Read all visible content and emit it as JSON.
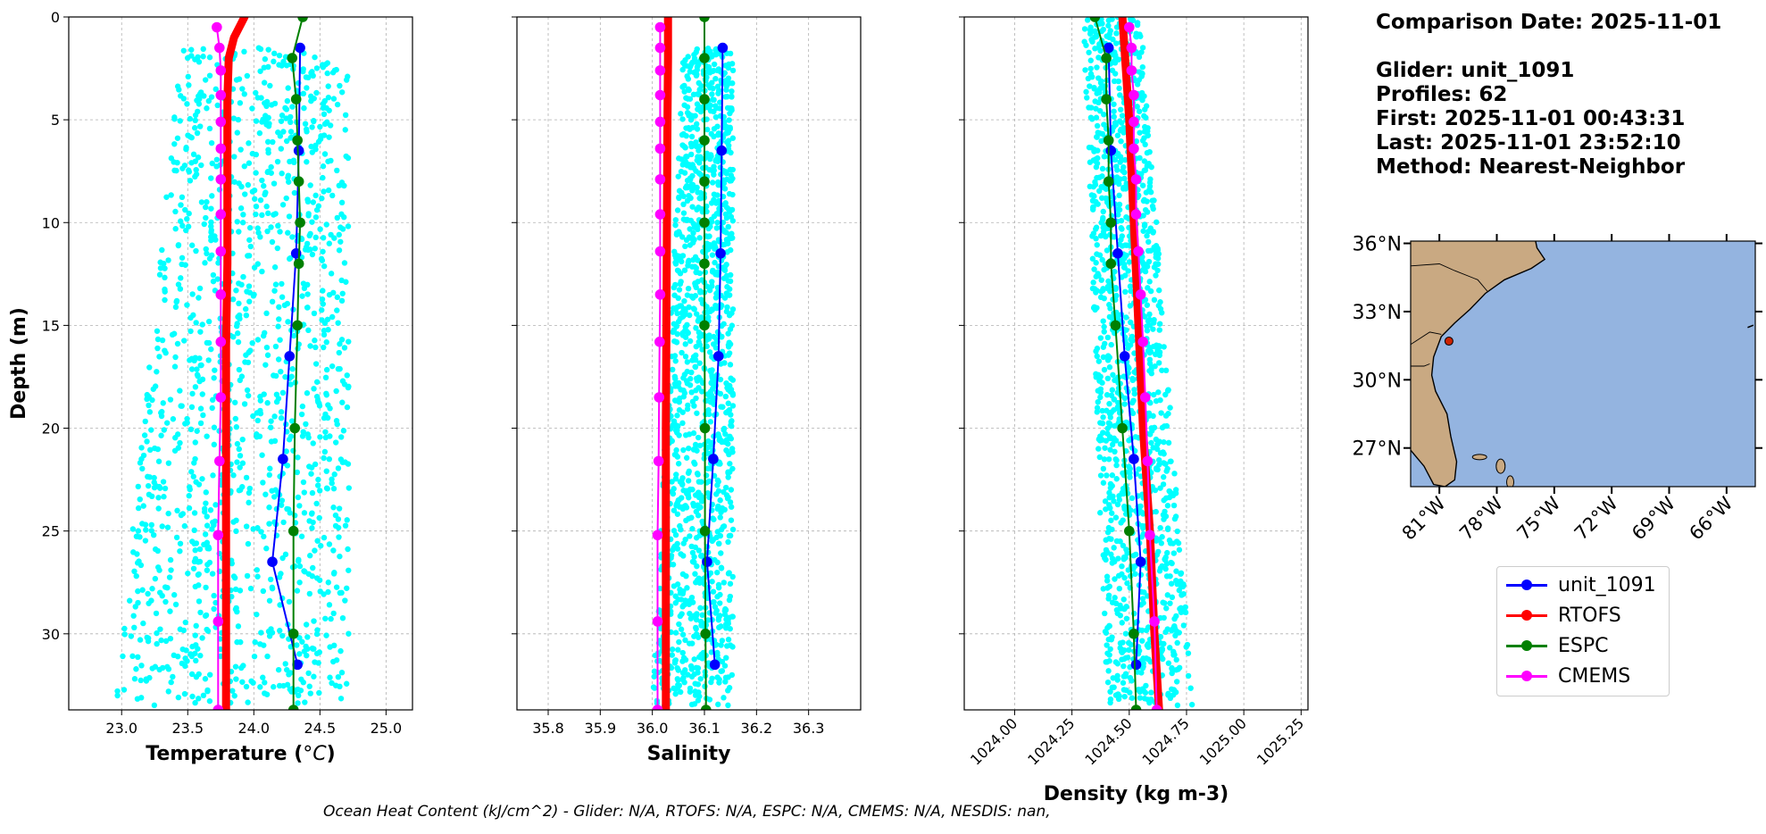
{
  "info": {
    "comparison_date": "Comparison Date: 2025-11-01",
    "glider": "Glider: unit_1091",
    "profiles": "Profiles: 62",
    "first": "First: 2025-11-01 00:43:31",
    "last": "Last: 2025-11-01 23:52:10",
    "method": "Method: Nearest-Neighbor"
  },
  "footer": "Ocean Heat Content (kJ/cm^2) - Glider: N/A,  RTOFS: N/A,  ESPC: N/A,  CMEMS: N/A,  NESDIS: nan,",
  "legend": [
    {
      "label": "unit_1091",
      "color": "#0000ff"
    },
    {
      "label": "RTOFS",
      "color": "#ff0000"
    },
    {
      "label": "ESPC",
      "color": "#008000"
    },
    {
      "label": "CMEMS",
      "color": "#ff00ff"
    }
  ],
  "colors": {
    "scatter": "#00ffff",
    "glider": "#0000ff",
    "rtofs": "#ff0000",
    "espc": "#008000",
    "cmems": "#ff00ff",
    "land": "#c9a982",
    "ocean": "#94b4e0"
  },
  "chart_data": [
    {
      "type": "line",
      "xlabel": "Temperature (°C)",
      "ylabel": "Depth (m)",
      "xlim": [
        22.6,
        25.2
      ],
      "ylim": [
        33.7,
        0
      ],
      "xticks": [
        "23.0",
        "23.5",
        "24.0",
        "24.5",
        "25.0"
      ],
      "yticks": [
        "0",
        "5",
        "10",
        "15",
        "20",
        "25",
        "30"
      ],
      "grid": true,
      "scatter_band": {
        "depth_range": [
          1.5,
          33.5
        ],
        "x_left_at_top": 23.45,
        "x_left_at_bottom": 22.95,
        "x_right": 24.72
      },
      "series": [
        {
          "name": "unit_1091",
          "depth": [
            1.5,
            6.5,
            11.5,
            16.5,
            21.5,
            26.5,
            31.5
          ],
          "values": [
            24.35,
            24.34,
            24.32,
            24.27,
            24.22,
            24.14,
            24.33
          ]
        },
        {
          "name": "RTOFS",
          "depth": [
            0,
            1,
            2,
            4,
            8,
            12,
            16,
            20,
            25,
            30,
            33.7
          ],
          "values": [
            23.93,
            23.85,
            23.81,
            23.8,
            23.8,
            23.8,
            23.79,
            23.79,
            23.79,
            23.79,
            23.79
          ]
        },
        {
          "name": "ESPC",
          "depth": [
            0,
            2,
            4,
            6,
            8,
            10,
            12,
            15,
            20,
            25,
            30,
            33.7
          ],
          "values": [
            24.37,
            24.29,
            24.32,
            24.33,
            24.34,
            24.35,
            24.34,
            24.33,
            24.31,
            24.3,
            24.3,
            24.3
          ]
        },
        {
          "name": "CMEMS",
          "depth": [
            0.5,
            1.5,
            2.6,
            3.8,
            5.1,
            6.4,
            7.9,
            9.6,
            11.4,
            13.5,
            15.8,
            18.5,
            21.6,
            25.2,
            29.4,
            33.7
          ],
          "values": [
            23.72,
            23.74,
            23.75,
            23.75,
            23.75,
            23.75,
            23.75,
            23.75,
            23.75,
            23.75,
            23.75,
            23.75,
            23.74,
            23.73,
            23.73,
            23.73
          ]
        }
      ]
    },
    {
      "type": "line",
      "xlabel": "Salinity",
      "ylabel": "",
      "xlim": [
        35.74,
        36.4
      ],
      "ylim": [
        33.7,
        0
      ],
      "xticks": [
        "35.8",
        "35.9",
        "36.0",
        "36.1",
        "36.2",
        "36.3"
      ],
      "yticks": [
        "0",
        "5",
        "10",
        "15",
        "20",
        "25",
        "30"
      ],
      "grid": true,
      "scatter_band": {
        "depth_range": [
          1.5,
          33.5
        ],
        "x_left_at_top": 36.06,
        "x_left_at_bottom": 36.0,
        "x_right": 36.155
      },
      "series": [
        {
          "name": "unit_1091",
          "depth": [
            1.5,
            6.5,
            11.5,
            16.5,
            21.5,
            26.5,
            31.5
          ],
          "values": [
            36.135,
            36.133,
            36.131,
            36.127,
            36.117,
            36.105,
            36.12
          ]
        },
        {
          "name": "RTOFS",
          "depth": [
            0,
            2,
            5,
            10,
            15,
            20,
            25,
            30,
            33.7
          ],
          "values": [
            36.03,
            36.03,
            36.029,
            36.028,
            36.027,
            36.026,
            36.026,
            36.026,
            36.026
          ]
        },
        {
          "name": "ESPC",
          "depth": [
            0,
            2,
            4,
            6,
            8,
            10,
            12,
            15,
            20,
            25,
            30,
            33.7
          ],
          "values": [
            36.1,
            36.1,
            36.1,
            36.1,
            36.1,
            36.1,
            36.1,
            36.1,
            36.101,
            36.101,
            36.102,
            36.103
          ]
        },
        {
          "name": "CMEMS",
          "depth": [
            0.5,
            1.5,
            2.6,
            3.8,
            5.1,
            6.4,
            7.9,
            9.6,
            11.4,
            13.5,
            15.8,
            18.5,
            21.6,
            25.2,
            29.4,
            33.7
          ],
          "values": [
            36.015,
            36.015,
            36.015,
            36.015,
            36.015,
            36.015,
            36.015,
            36.015,
            36.015,
            36.015,
            36.014,
            36.013,
            36.012,
            36.01,
            36.01,
            36.01
          ]
        }
      ]
    },
    {
      "type": "line",
      "xlabel": "Density (kg m-3)",
      "ylabel": "",
      "xlim": [
        1023.78,
        1025.28
      ],
      "ylim": [
        33.7,
        0
      ],
      "xticks": [
        "1024.00",
        "1024.25",
        "1024.50",
        "1024.75",
        "1025.00",
        "1025.25"
      ],
      "yticks": [
        "0",
        "5",
        "10",
        "15",
        "20",
        "25",
        "30"
      ],
      "grid": true,
      "scatter_band": {
        "depth_range": [
          0,
          33.5
        ],
        "x_left_at_top": 1024.3,
        "x_left_at_bottom": 1024.4,
        "x_right_at_top": 1024.55,
        "x_right_at_bottom": 1024.78
      },
      "series": [
        {
          "name": "unit_1091",
          "depth": [
            1.5,
            6.5,
            11.5,
            16.5,
            21.5,
            26.5,
            31.5
          ],
          "values": [
            1024.41,
            1024.42,
            1024.45,
            1024.48,
            1024.52,
            1024.55,
            1024.53
          ]
        },
        {
          "name": "RTOFS",
          "depth": [
            0,
            5,
            10,
            15,
            20,
            25,
            30,
            33.7
          ],
          "values": [
            1024.47,
            1024.5,
            1024.52,
            1024.54,
            1024.56,
            1024.59,
            1024.61,
            1024.63
          ]
        },
        {
          "name": "ESPC",
          "depth": [
            0,
            2,
            4,
            6,
            8,
            10,
            12,
            15,
            20,
            25,
            30,
            33.7
          ],
          "values": [
            1024.35,
            1024.4,
            1024.4,
            1024.41,
            1024.41,
            1024.42,
            1024.42,
            1024.44,
            1024.47,
            1024.5,
            1024.52,
            1024.53
          ]
        },
        {
          "name": "CMEMS",
          "depth": [
            0.5,
            1.5,
            2.6,
            3.8,
            5.1,
            6.4,
            7.9,
            9.6,
            11.4,
            13.5,
            15.8,
            18.5,
            21.6,
            25.2,
            29.4,
            33.7
          ],
          "values": [
            1024.5,
            1024.51,
            1024.51,
            1024.52,
            1024.52,
            1024.52,
            1024.53,
            1024.53,
            1024.54,
            1024.55,
            1024.56,
            1024.57,
            1024.58,
            1024.59,
            1024.61,
            1024.62
          ]
        }
      ]
    },
    {
      "type": "map",
      "lat_ticks": [
        "36°N",
        "33°N",
        "30°N",
        "27°N"
      ],
      "lon_ticks": [
        "81°W",
        "78°W",
        "75°W",
        "72°W",
        "69°W",
        "66°W"
      ],
      "lat_values": [
        36,
        33,
        30,
        27
      ],
      "lon_values": [
        -81,
        -78,
        -75,
        -72,
        -69,
        -66
      ],
      "extent": {
        "lon": [
          -82.5,
          -64.5
        ],
        "lat": [
          25.3,
          36.1
        ]
      },
      "marker": {
        "lon": -80.5,
        "lat": 31.7,
        "color": "#cc2200"
      }
    }
  ]
}
